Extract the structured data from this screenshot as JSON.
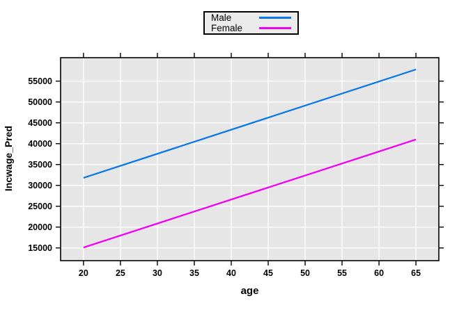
{
  "figure": {
    "background": "#FFFFFF",
    "plot_background": "#E6E6E6",
    "grid_color": "#FFFFFF",
    "border_color": "#000000",
    "tick_color": "#000000"
  },
  "legend": {
    "items": [
      {
        "label": "Male",
        "color": "#0B78E8"
      },
      {
        "label": "Female",
        "color": "#F000F0"
      }
    ]
  },
  "chart_data": {
    "type": "line",
    "title": "",
    "xlabel": "age",
    "ylabel": "Incwage_Pred",
    "x_ticks": [
      20,
      25,
      30,
      35,
      40,
      45,
      50,
      55,
      60,
      65
    ],
    "y_ticks": [
      15000,
      20000,
      25000,
      30000,
      35000,
      40000,
      45000,
      50000,
      55000
    ],
    "xlim": [
      16.9,
      68.1
    ],
    "ylim": [
      11950,
      60620
    ],
    "grid": true,
    "legend_position": "top-center",
    "series": [
      {
        "name": "Male",
        "color": "#0B78E8",
        "x": [
          20,
          65
        ],
        "y": [
          31800,
          57800
        ]
      },
      {
        "name": "Female",
        "color": "#F000F0",
        "x": [
          20,
          65
        ],
        "y": [
          15100,
          41000
        ]
      }
    ]
  }
}
